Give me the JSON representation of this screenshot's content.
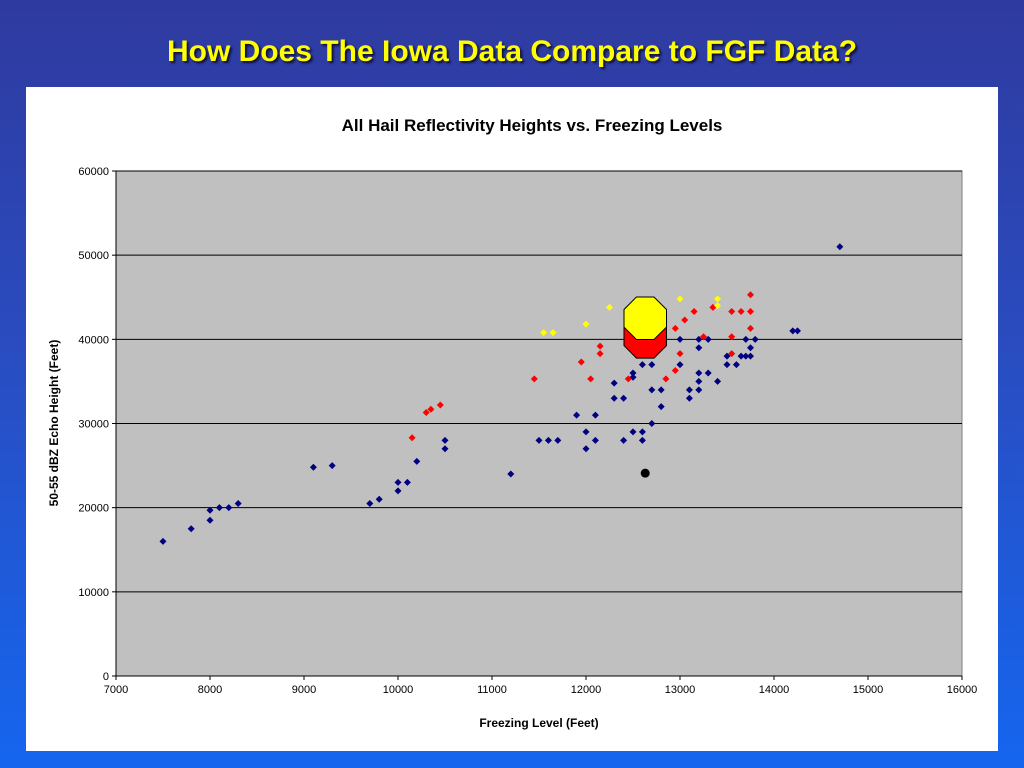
{
  "slide": {
    "title": "How Does The Iowa Data Compare to FGF Data?"
  },
  "colors": {
    "navy": "#000080",
    "red": "#ff0000",
    "yellow": "#ffff00",
    "black": "#000000",
    "plot_bg": "#c0c0c0"
  },
  "chart_data": {
    "type": "scatter",
    "title": "All Hail Reflectivity Heights vs. Freezing Levels",
    "xlabel": "Freezing Level (Feet)",
    "ylabel": "50-55 dBZ Echo Height (Feet)",
    "xlim": [
      7000,
      16000
    ],
    "ylim": [
      0,
      60000
    ],
    "xticks": [
      "7000",
      "8000",
      "9000",
      "10000",
      "11000",
      "12000",
      "13000",
      "14000",
      "15000",
      "16000"
    ],
    "yticks": [
      "0",
      "10000",
      "20000",
      "30000",
      "40000",
      "50000",
      "60000"
    ],
    "grid": "horizontal",
    "legend": "none",
    "series": [
      {
        "color": "#000080",
        "marker": "diamond",
        "points": [
          [
            7500,
            16000
          ],
          [
            7800,
            17500
          ],
          [
            8000,
            18500
          ],
          [
            8000,
            19700
          ],
          [
            8100,
            20000
          ],
          [
            8200,
            20000
          ],
          [
            8300,
            20500
          ],
          [
            9100,
            24800
          ],
          [
            9300,
            25000
          ],
          [
            9700,
            20500
          ],
          [
            9800,
            21000
          ],
          [
            10000,
            22000
          ],
          [
            10000,
            23000
          ],
          [
            10100,
            23000
          ],
          [
            10200,
            25500
          ],
          [
            10500,
            27000
          ],
          [
            10500,
            28000
          ],
          [
            11200,
            24000
          ],
          [
            11500,
            28000
          ],
          [
            11600,
            28000
          ],
          [
            11700,
            28000
          ],
          [
            11900,
            31000
          ],
          [
            12000,
            27000
          ],
          [
            12000,
            29000
          ],
          [
            12100,
            28000
          ],
          [
            12100,
            31000
          ],
          [
            12300,
            33000
          ],
          [
            12300,
            34800
          ],
          [
            12400,
            28000
          ],
          [
            12400,
            33000
          ],
          [
            12500,
            29000
          ],
          [
            12500,
            35500
          ],
          [
            12500,
            36000
          ],
          [
            12600,
            28000
          ],
          [
            12600,
            29000
          ],
          [
            12600,
            37000
          ],
          [
            12700,
            30000
          ],
          [
            12700,
            34000
          ],
          [
            12700,
            37000
          ],
          [
            12800,
            32000
          ],
          [
            12800,
            34000
          ],
          [
            13000,
            37000
          ],
          [
            13000,
            40000
          ],
          [
            13100,
            33000
          ],
          [
            13100,
            34000
          ],
          [
            13200,
            34000
          ],
          [
            13200,
            35000
          ],
          [
            13200,
            36000
          ],
          [
            13200,
            39000
          ],
          [
            13200,
            40000
          ],
          [
            13300,
            36000
          ],
          [
            13300,
            40000
          ],
          [
            13400,
            35000
          ],
          [
            13500,
            37000
          ],
          [
            13500,
            38000
          ],
          [
            13600,
            37000
          ],
          [
            13650,
            38000
          ],
          [
            13700,
            38000
          ],
          [
            13700,
            40000
          ],
          [
            13750,
            38000
          ],
          [
            13750,
            39000
          ],
          [
            13800,
            40000
          ],
          [
            14200,
            41000
          ],
          [
            14250,
            41000
          ],
          [
            14700,
            51000
          ]
        ]
      },
      {
        "color": "#ff0000",
        "marker": "diamond",
        "points": [
          [
            10150,
            28300
          ],
          [
            10300,
            31300
          ],
          [
            10350,
            31700
          ],
          [
            10450,
            32200
          ],
          [
            11450,
            35300
          ],
          [
            11950,
            37300
          ],
          [
            12050,
            35300
          ],
          [
            12150,
            38300
          ],
          [
            12150,
            39200
          ],
          [
            12450,
            35300
          ],
          [
            12550,
            39500
          ],
          [
            12850,
            35300
          ],
          [
            12950,
            36300
          ],
          [
            12950,
            41300
          ],
          [
            13000,
            38300
          ],
          [
            13050,
            42300
          ],
          [
            13150,
            43300
          ],
          [
            13250,
            40300
          ],
          [
            13350,
            43800
          ],
          [
            13550,
            38300
          ],
          [
            13550,
            40300
          ],
          [
            13550,
            43300
          ],
          [
            13650,
            43300
          ],
          [
            13750,
            41300
          ],
          [
            13750,
            43300
          ],
          [
            13750,
            45300
          ]
        ]
      },
      {
        "color": "#ffff00",
        "marker": "diamond",
        "points": [
          [
            11550,
            40800
          ],
          [
            11650,
            40800
          ],
          [
            12000,
            41800
          ],
          [
            12250,
            43800
          ],
          [
            13000,
            44800
          ],
          [
            13400,
            44000
          ],
          [
            13400,
            44800
          ]
        ]
      }
    ],
    "highlights": [
      {
        "shape": "octagon",
        "color": "#ff0000",
        "x": 12630,
        "y": 40300
      },
      {
        "shape": "octagon",
        "color": "#ffff00",
        "x": 12630,
        "y": 42500
      },
      {
        "shape": "circle",
        "color": "#000000",
        "x": 12630,
        "y": 24100
      }
    ]
  }
}
